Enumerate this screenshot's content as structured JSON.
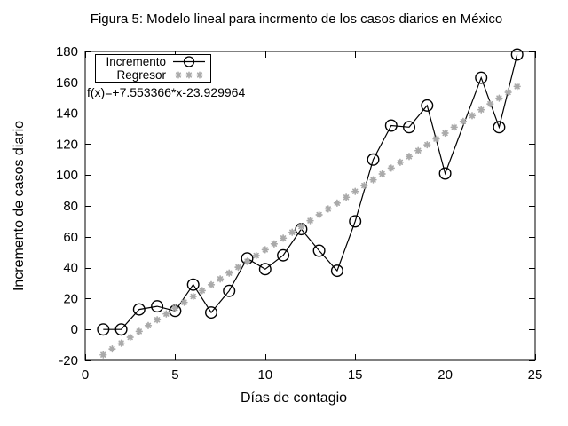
{
  "title": "Figura 5: Modelo lineal para incrmento de los casos diarios en México",
  "axes": {
    "x": {
      "label": "Días de contagio"
    },
    "y": {
      "label": "Incremento de casos diario"
    }
  },
  "legend": {
    "position": "top-left",
    "items": [
      {
        "label": "Incremento",
        "marker": "line-open-circle"
      },
      {
        "label": "Regresor",
        "marker": "asterisk-dots"
      }
    ]
  },
  "annotation": {
    "text": "f(x)=+7.553366*x-23.929964"
  },
  "colors": {
    "foreground": "#000000",
    "regression": "#aaaaaa",
    "background": "#ffffff"
  },
  "chart_data": {
    "type": "line",
    "title": "Figura 5: Modelo lineal para incrmento de los casos diarios en México",
    "xlabel": "Días de contagio",
    "ylabel": "Incremento de casos diario",
    "xlim": [
      0,
      25
    ],
    "ylim": [
      -20,
      180
    ],
    "x_ticks": [
      0,
      5,
      10,
      15,
      20,
      25
    ],
    "y_ticks": [
      -20,
      0,
      20,
      40,
      60,
      80,
      100,
      120,
      140,
      160,
      180
    ],
    "grid": false,
    "legend_position": "top-left",
    "series": [
      {
        "name": "Incremento",
        "style": "linespoints",
        "marker": "open-circle",
        "color": "#000000",
        "points": [
          [
            1,
            0
          ],
          [
            2,
            0
          ],
          [
            3,
            13
          ],
          [
            4,
            15
          ],
          [
            5,
            12
          ],
          [
            6,
            29
          ],
          [
            7,
            11
          ],
          [
            8,
            25
          ],
          [
            9,
            46
          ],
          [
            10,
            39
          ],
          [
            11,
            48
          ],
          [
            12,
            65
          ],
          [
            13,
            51
          ],
          [
            14,
            38
          ],
          [
            15,
            70
          ],
          [
            16,
            110
          ],
          [
            17,
            132
          ],
          [
            18,
            131
          ],
          [
            19,
            145
          ],
          [
            20,
            101
          ],
          [
            22,
            163
          ],
          [
            23,
            131
          ],
          [
            24,
            178
          ]
        ]
      },
      {
        "name": "Regresor",
        "style": "points",
        "marker": "asterisk",
        "color": "#aaaaaa",
        "model": {
          "slope": 7.553366,
          "intercept": -23.929964,
          "x_start": 1,
          "x_end": 24,
          "x_step": 0.5
        },
        "annotation": "f(x)=+7.553366*x-23.929964"
      }
    ]
  }
}
